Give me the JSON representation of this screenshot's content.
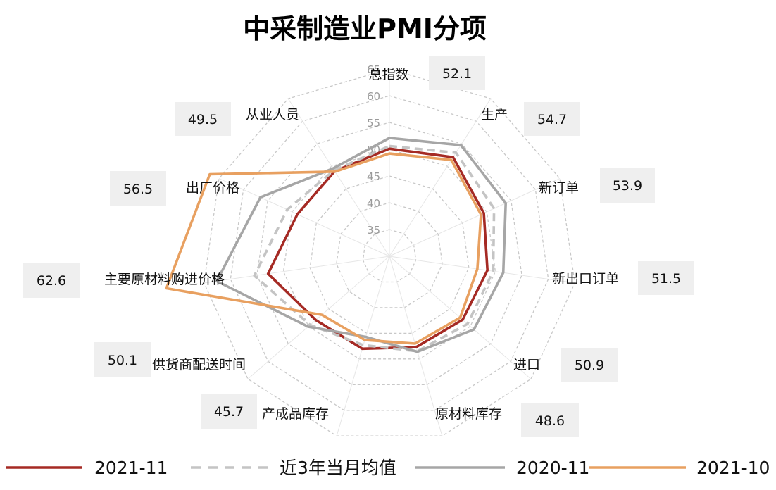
{
  "chart_data": {
    "type": "radar",
    "title": "中采制造业PMI分项",
    "categories": [
      "总指数",
      "生产",
      "新订单",
      "新出口订单",
      "进口",
      "原材料库存",
      "产成品库存",
      "供货商配送时间",
      "主要原材料购进价格",
      "出厂价格",
      "从业人员"
    ],
    "value_labels": [
      "52.1",
      "54.7",
      "53.9",
      "51.5",
      "50.9",
      "48.6",
      "45.7",
      "50.1",
      "62.6",
      "56.5",
      "49.5"
    ],
    "r_ticks": [
      35,
      40,
      45,
      50,
      55,
      60,
      65
    ],
    "r_range": [
      30,
      65
    ],
    "grid": true,
    "legend_position": "bottom",
    "series": [
      {
        "name": "2021-11",
        "color": "#a52a24",
        "dash": "solid",
        "values": [
          50.1,
          52.0,
          49.4,
          48.5,
          48.1,
          47.7,
          48.0,
          48.2,
          52.9,
          48.9,
          48.9
        ]
      },
      {
        "name": "近3年当月均值",
        "color": "#c4c4c4",
        "dash": "dashed",
        "values": [
          50.6,
          53.0,
          51.5,
          49.6,
          49.3,
          48.5,
          47.3,
          49.6,
          55.5,
          51.0,
          49.1
        ]
      },
      {
        "name": "2020-11",
        "color": "#a6a6a6",
        "dash": "solid",
        "values": [
          52.1,
          54.7,
          53.9,
          51.5,
          50.9,
          48.6,
          45.7,
          50.1,
          62.6,
          56.5,
          49.5
        ]
      },
      {
        "name": "2021-10",
        "color": "#e8a060",
        "dash": "solid",
        "values": [
          49.2,
          51.4,
          48.8,
          46.6,
          47.5,
          47.0,
          46.3,
          46.7,
          72.1,
          66.9,
          48.8
        ]
      }
    ]
  }
}
